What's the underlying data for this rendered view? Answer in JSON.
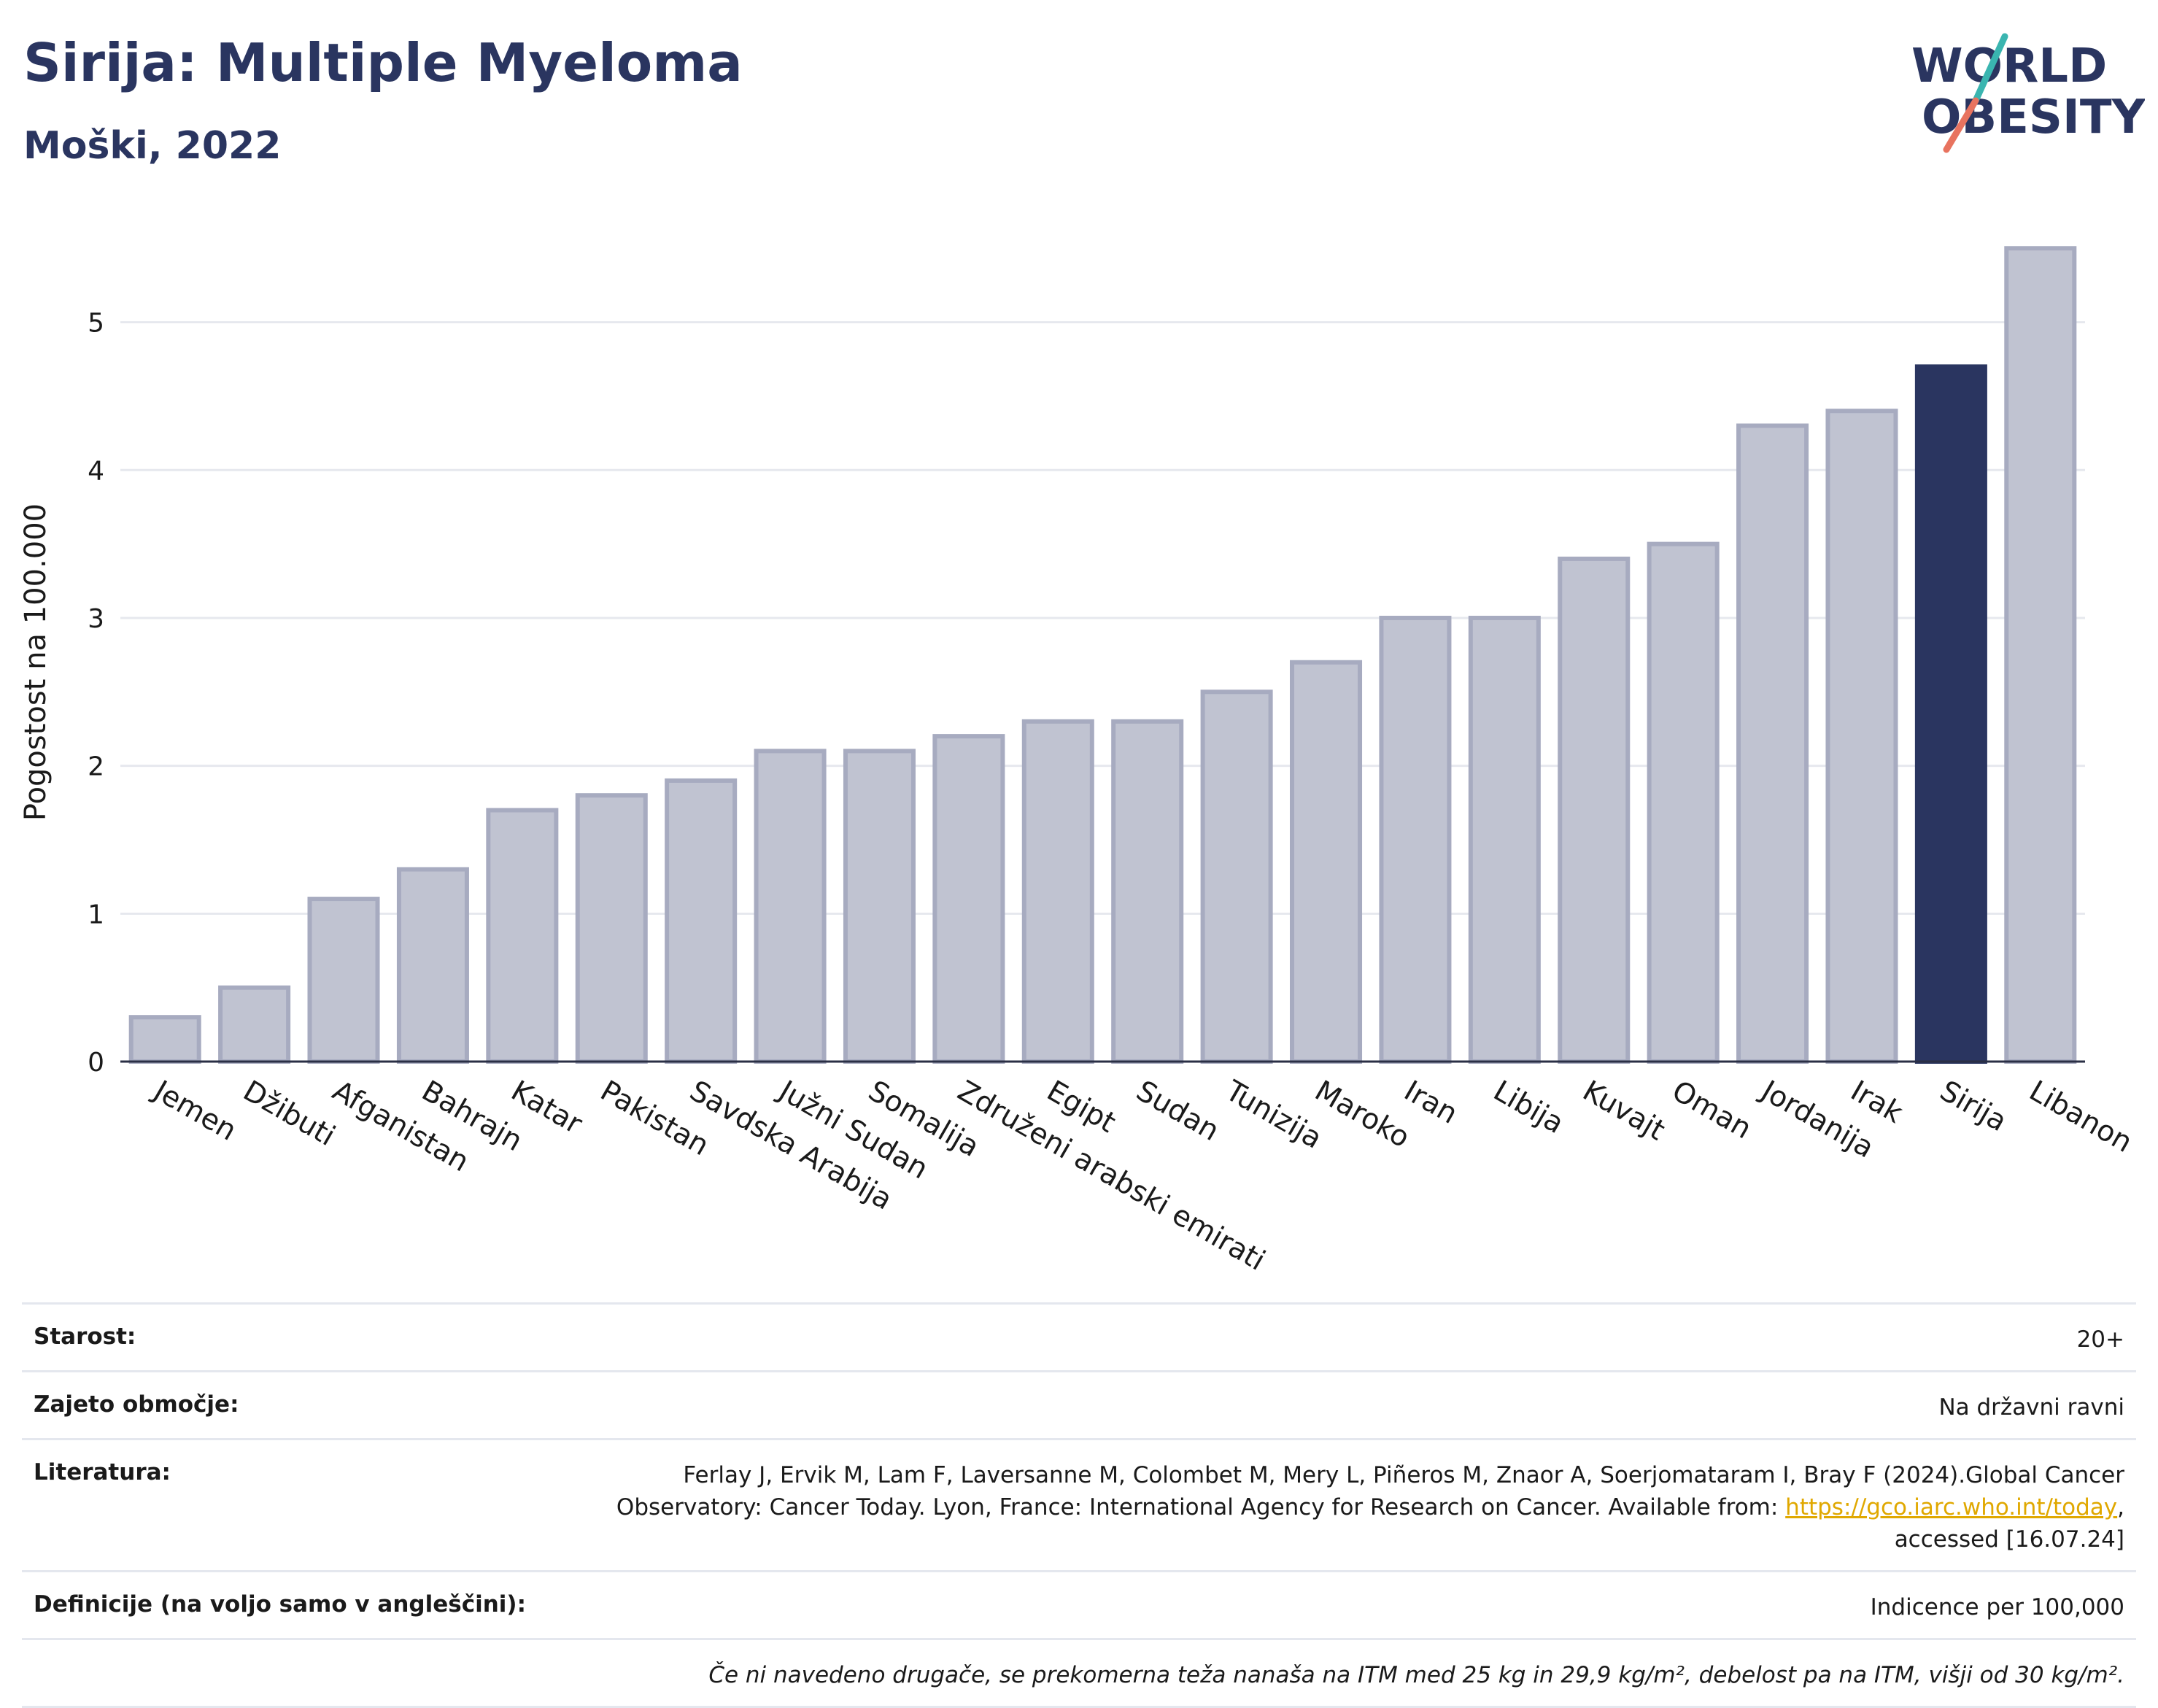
{
  "header": {
    "title": "Sirija: Multiple Myeloma",
    "subtitle": "Moški, 2022"
  },
  "logo": {
    "line1": "WORLD",
    "line2": "OBESITY",
    "color_text": "#2a3560",
    "color_accent1": "#3ab5b0",
    "color_accent2": "#e8735f"
  },
  "chart_data": {
    "type": "bar",
    "ylabel": "Pogostost na 100.000",
    "xlabel": "",
    "ylim": [
      0,
      5.6
    ],
    "yticks": [
      0,
      1,
      2,
      3,
      4,
      5
    ],
    "grid": true,
    "highlight_category": "Sirija",
    "colors": {
      "bar": "#c0c3d1",
      "bar_border": "#a7abc0",
      "highlight": "#2a3560",
      "grid": "#e6e8ee",
      "axis": "#2a2f45"
    },
    "categories": [
      "Jemen",
      "Džibuti",
      "Afganistan",
      "Bahrajn",
      "Katar",
      "Pakistan",
      "Savdska Arabija",
      "Južni Sudan",
      "Somalija",
      "Združeni arabski emirati",
      "Egipt",
      "Sudan",
      "Tunizija",
      "Maroko",
      "Iran",
      "Libija",
      "Kuvajt",
      "Oman",
      "Jordanija",
      "Irak",
      "Sirija",
      "Libanon"
    ],
    "values": [
      0.3,
      0.5,
      1.1,
      1.3,
      1.7,
      1.8,
      1.9,
      2.1,
      2.1,
      2.2,
      2.3,
      2.3,
      2.5,
      2.7,
      3.0,
      3.0,
      3.4,
      3.5,
      4.3,
      4.4,
      4.7,
      5.5
    ]
  },
  "info": {
    "age_label": "Starost:",
    "age_value": "20+",
    "area_label": "Zajeto območje:",
    "area_value": "Na državni ravni",
    "lit_label": "Literatura:",
    "lit_text1": "Ferlay J, Ervik M, Lam F, Laversanne M, Colombet M, Mery L, Piñeros M, Znaor A, Soerjomataram I, Bray F (2024).Global Cancer Observatory: Cancer Today. Lyon, France: International Agency for Research on Cancer. Available from: ",
    "lit_link": "https://gco.iarc.who.int/today",
    "lit_text2": ", accessed [16.07.24]",
    "def_label": "Definicije (na voljo samo v angleščini):",
    "def_value": "Indicence per 100,000",
    "note": "Če ni navedeno drugače, se prekomerna teža nanaša na ITM med 25 kg in 29,9 kg/m², debelost pa na ITM, višji od 30 kg/m²."
  }
}
